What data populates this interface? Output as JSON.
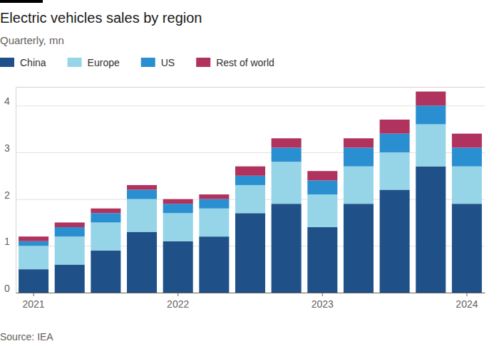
{
  "chart_data": {
    "type": "bar",
    "stacked": true,
    "title": "Electric vehicles sales by region",
    "subtitle": "Quarterly, mn",
    "source": "Source: IEA",
    "categories": [
      "2021",
      null,
      null,
      null,
      "2022",
      null,
      null,
      null,
      "2023",
      null,
      null,
      null,
      "2024"
    ],
    "series": [
      {
        "name": "China",
        "color": "#1f5188",
        "values": [
          0.5,
          0.6,
          0.9,
          1.3,
          1.1,
          1.2,
          1.7,
          1.9,
          1.4,
          1.9,
          2.2,
          2.7,
          1.9
        ]
      },
      {
        "name": "Europe",
        "color": "#96d4e8",
        "values": [
          0.5,
          0.6,
          0.6,
          0.7,
          0.6,
          0.6,
          0.6,
          0.9,
          0.7,
          0.8,
          0.8,
          0.9,
          0.8
        ]
      },
      {
        "name": "US",
        "color": "#2a8fd0",
        "values": [
          0.1,
          0.2,
          0.2,
          0.2,
          0.2,
          0.2,
          0.2,
          0.3,
          0.3,
          0.4,
          0.4,
          0.4,
          0.4
        ]
      },
      {
        "name": "Rest of world",
        "color": "#b0325e",
        "values": [
          0.1,
          0.1,
          0.1,
          0.1,
          0.1,
          0.1,
          0.2,
          0.2,
          0.2,
          0.2,
          0.3,
          0.3,
          0.3
        ]
      }
    ],
    "ylim": [
      0,
      4.4
    ],
    "yticks": [
      0,
      1,
      2,
      3,
      4
    ],
    "grid": true,
    "legend": "top"
  }
}
